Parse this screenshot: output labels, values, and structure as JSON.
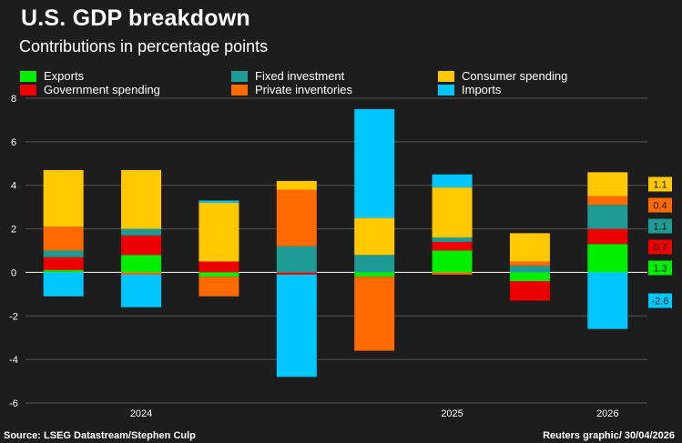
{
  "title": "U.S. GDP breakdown",
  "subtitle": "Contributions in percentage points",
  "source": "Source: LSEG Datastream/Stephen Culp",
  "credit": "Reuters graphic/ 30/04/2026",
  "chart_data": {
    "type": "bar",
    "stacked": true,
    "ylim": [
      -6,
      8
    ],
    "yticks": [
      "-6",
      "-4",
      "-2",
      "0",
      "2",
      "4",
      "6",
      "8"
    ],
    "ytick_values": [
      -6,
      -4,
      -2,
      0,
      2,
      4,
      6,
      8
    ],
    "grid": true,
    "legend_position": "top",
    "x_labels": [
      {
        "label": "2024",
        "after_index": 1
      },
      {
        "label": "2025",
        "after_index": 5
      },
      {
        "label": "2026",
        "after_index": 7
      }
    ],
    "categories": [
      "",
      "",
      "",
      "",
      "",
      "",
      "",
      ""
    ],
    "series": [
      {
        "name": "Exports",
        "color": "#00ee00",
        "values": [
          0.1,
          0.8,
          -0.2,
          0.0,
          -0.2,
          1.0,
          -0.4,
          1.3
        ]
      },
      {
        "name": "Government spending",
        "color": "#ee0000",
        "values": [
          0.6,
          0.9,
          0.5,
          -0.1,
          0.0,
          0.4,
          -0.9,
          0.7
        ]
      },
      {
        "name": "Fixed investment",
        "color": "#1e9b94",
        "values": [
          0.3,
          0.3,
          0.0,
          1.2,
          0.8,
          0.2,
          0.3,
          1.1
        ]
      },
      {
        "name": "Private inventories",
        "color": "#ff6a00",
        "values": [
          1.1,
          -0.1,
          -0.9,
          2.6,
          -3.4,
          -0.1,
          0.2,
          0.4
        ]
      },
      {
        "name": "Consumer spending",
        "color": "#ffc800",
        "values": [
          2.6,
          2.7,
          2.7,
          0.4,
          1.7,
          2.3,
          1.3,
          1.1
        ]
      },
      {
        "name": "Imports",
        "color": "#00c8ff",
        "values": [
          -1.1,
          -1.5,
          0.1,
          -4.7,
          5.0,
          0.6,
          0.0,
          -2.6
        ]
      }
    ],
    "last_bar_labels": [
      {
        "series": "Government spending",
        "text": "0.7",
        "color": "#ee0000"
      },
      {
        "series": "Consumer spending",
        "text": "1.1",
        "color": "#ffc800"
      },
      {
        "series": "Fixed investment",
        "text": "1.1",
        "color": "#1e9b94"
      },
      {
        "series": "Exports",
        "text": "1.3",
        "color": "#00ee00"
      },
      {
        "series": "Private inventories",
        "text": "0.4",
        "color": "#ff6a00"
      },
      {
        "series": "Imports",
        "text": "-2.6",
        "color": "#00c8ff"
      }
    ]
  }
}
